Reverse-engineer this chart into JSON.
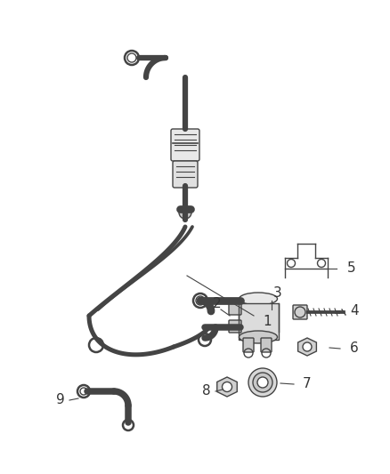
{
  "background_color": "#ffffff",
  "line_color": "#444444",
  "label_color": "#333333",
  "fig_width": 4.38,
  "fig_height": 5.33,
  "dpi": 100,
  "line_width": 1.8,
  "thin_lw": 1.0
}
